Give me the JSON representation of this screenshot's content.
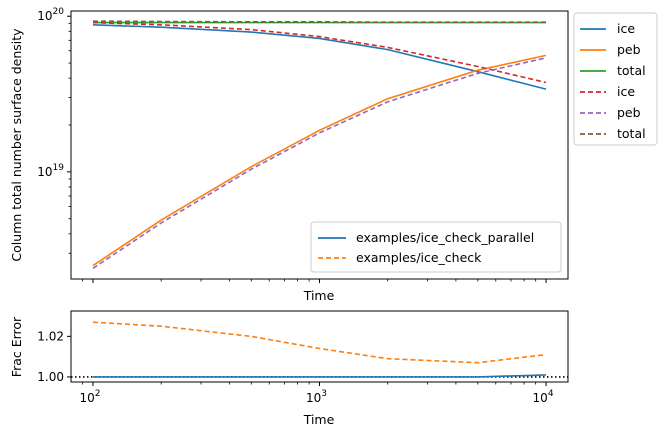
{
  "chart_data": [
    {
      "type": "line",
      "x_scale": "log",
      "y_scale": "log",
      "xlabel": "Time",
      "ylabel": "Column total number surface density",
      "xlim": [
        80,
        12500
      ],
      "ylim": [
        2.05e+18,
        1.08e+20
      ],
      "x_ticks": [
        100,
        1000,
        10000
      ],
      "y_ticks": [
        1e+19,
        1e+20
      ],
      "x": [
        100,
        200,
        500,
        1000,
        2000,
        5000,
        10000
      ],
      "series": [
        {
          "name": "ice",
          "style": "solid",
          "color": "#1f77b4",
          "values": [
            8.8e+19,
            8.5e+19,
            7.9e+19,
            7.2e+19,
            6.1e+19,
            4.4e+19,
            3.4e+19
          ]
        },
        {
          "name": "peb",
          "style": "solid",
          "color": "#ff7f0e",
          "values": [
            2.5e+18,
            4.9e+18,
            1.08e+19,
            1.85e+19,
            2.95e+19,
            4.5e+19,
            5.6e+19
          ]
        },
        {
          "name": "total",
          "style": "solid",
          "color": "#2ca02c",
          "values": [
            9.1e+19,
            9.1e+19,
            9.1e+19,
            9.1e+19,
            9.1e+19,
            9.1e+19,
            9.1e+19
          ]
        },
        {
          "name": "ice",
          "style": "dashed",
          "color": "#d62728",
          "values": [
            9.1e+19,
            8.8e+19,
            8.2e+19,
            7.4e+19,
            6.3e+19,
            4.75e+19,
            3.75e+19
          ]
        },
        {
          "name": "peb",
          "style": "dashed",
          "color": "#9467bd",
          "values": [
            2.4e+18,
            4.7e+18,
            1.04e+19,
            1.78e+19,
            2.82e+19,
            4.3e+19,
            5.4e+19
          ]
        },
        {
          "name": "total",
          "style": "dashed",
          "color": "#8c564b",
          "values": [
            9.3e+19,
            9.25e+19,
            9.2e+19,
            9.2e+19,
            9.15e+19,
            9.15e+19,
            9.15e+19
          ]
        }
      ],
      "legend_series": [
        "ice",
        "peb",
        "total",
        "ice",
        "peb",
        "total"
      ],
      "legend_series_placement": "outside upper-right",
      "legend_runs": [
        {
          "label": "examples/ice_check_parallel",
          "style": "solid",
          "color": "#1f77b4"
        },
        {
          "label": "examples/ice_check",
          "style": "dashed",
          "color": "#ff7f0e"
        }
      ],
      "legend_runs_placement": "lower-right"
    },
    {
      "type": "line",
      "x_scale": "log",
      "xlabel": "Time",
      "ylabel": "Frac Error",
      "xlim": [
        80,
        12500
      ],
      "ylim": [
        0.9975,
        1.0325
      ],
      "x_tick_labels": [
        "10^2",
        "10^3",
        "10^4"
      ],
      "y_ticks": [
        "1.00",
        "1.02"
      ],
      "reference_line": 1.0,
      "x": [
        100,
        200,
        500,
        1000,
        2000,
        5000,
        10000
      ],
      "series": [
        {
          "name": "examples/ice_check_parallel",
          "style": "solid",
          "color": "#1f77b4",
          "values": [
            1.0,
            1.0,
            1.0,
            1.0,
            1.0,
            1.0,
            1.001
          ]
        },
        {
          "name": "examples/ice_check",
          "style": "dashed",
          "color": "#ff7f0e",
          "values": [
            1.027,
            1.025,
            1.02,
            1.014,
            1.009,
            1.007,
            1.011
          ]
        }
      ]
    }
  ]
}
